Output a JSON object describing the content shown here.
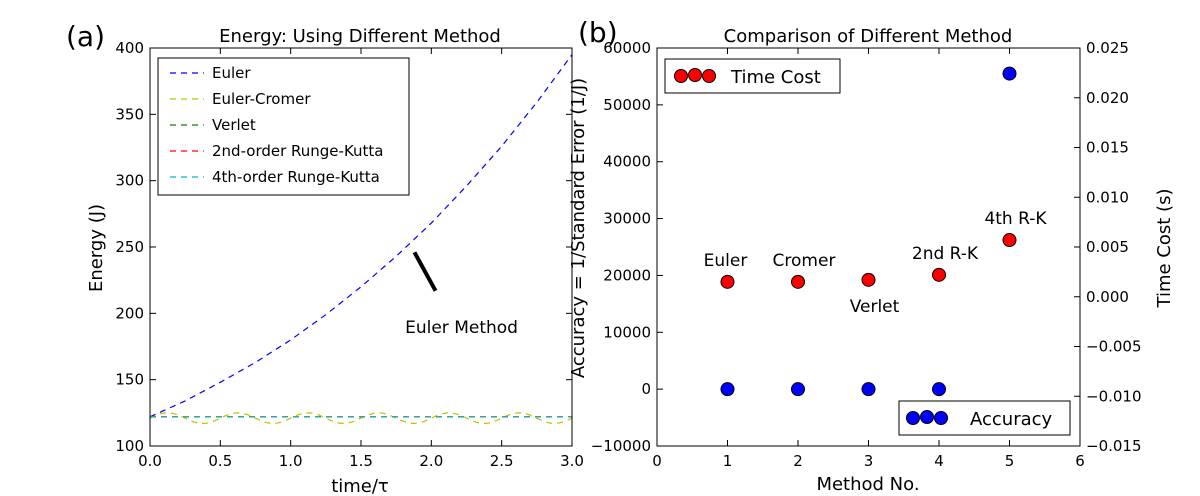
{
  "chart_data": [
    {
      "panel_label": "(a)",
      "type": "line",
      "title": "Energy: Using Different Method",
      "xlabel": "time/τ",
      "ylabel": "Energy (J)",
      "xlim": [
        0.0,
        3.0
      ],
      "ylim": [
        100,
        400
      ],
      "xticks": [
        "0.0",
        "0.5",
        "1.0",
        "1.5",
        "2.0",
        "2.5",
        "3.0"
      ],
      "yticks": [
        "100",
        "150",
        "200",
        "250",
        "300",
        "350",
        "400"
      ],
      "legend_position": "upper-left",
      "series": [
        {
          "name": "Euler",
          "color": "#0000ff",
          "style": "dashed",
          "x": [
            0.0,
            0.25,
            0.5,
            0.75,
            1.0,
            1.25,
            1.5,
            1.75,
            2.0,
            2.25,
            2.5,
            2.75,
            3.0
          ],
          "y": [
            122.0,
            134.0,
            148.0,
            163.0,
            180.0,
            199.0,
            220.0,
            243.0,
            268.0,
            296.0,
            326.0,
            359.0,
            395.0
          ]
        },
        {
          "name": "Euler-Cromer",
          "color": "#bfbf00",
          "style": "dashed",
          "amplitude": 4,
          "period": 0.5,
          "baseline": 121
        },
        {
          "name": "Verlet",
          "color": "#008000",
          "style": "dashed",
          "x": [
            0.0,
            3.0
          ],
          "y": [
            122.0,
            122.0
          ]
        },
        {
          "name": "2nd-order Runge-Kutta",
          "color": "#ff0000",
          "style": "dashed",
          "x": [
            0.0,
            3.0
          ],
          "y": [
            122.0,
            122.0
          ]
        },
        {
          "name": "4th-order Runge-Kutta",
          "color": "#00bfbf",
          "style": "dashed",
          "x": [
            0.0,
            3.0
          ],
          "y": [
            122.0,
            122.0
          ]
        }
      ],
      "annotation": {
        "text": "Euler Method",
        "arrow_from": [
          2.03,
          217
        ],
        "arrow_to": [
          1.88,
          246
        ]
      }
    },
    {
      "panel_label": "(b)",
      "type": "scatter",
      "title": "Comparison of Different Method",
      "xlabel": "Method No.",
      "ylabel": "Accuracy = 1/Standard Error (1/J)",
      "y2label": "Time Cost (s)",
      "xlim": [
        0,
        6
      ],
      "ylim": [
        -10000,
        60000
      ],
      "y2lim": [
        -0.015,
        0.025
      ],
      "xticks": [
        "0",
        "1",
        "2",
        "3",
        "4",
        "5",
        "6"
      ],
      "yticks": [
        "−10000",
        "0",
        "10000",
        "20000",
        "30000",
        "40000",
        "50000",
        "60000"
      ],
      "y2ticks": [
        "−0.015",
        "−0.010",
        "−0.005",
        "0.000",
        "0.005",
        "0.010",
        "0.015",
        "0.020",
        "0.025"
      ],
      "series": [
        {
          "name": "Accuracy",
          "color": "#0000ff",
          "axis": "left",
          "x": [
            1,
            2,
            3,
            4,
            5
          ],
          "y": [
            0,
            0,
            0,
            0,
            55500
          ]
        },
        {
          "name": "Time Cost",
          "color": "#ff0000",
          "axis": "right",
          "x": [
            1,
            2,
            3,
            4,
            5
          ],
          "y": [
            0.0015,
            0.0015,
            0.0017,
            0.0022,
            0.0057
          ]
        }
      ],
      "point_labels": [
        "Euler",
        "Cromer",
        "Verlet",
        "2nd R-K",
        "4th R-K"
      ],
      "legend": {
        "time_cost": "Time Cost",
        "accuracy": "Accuracy",
        "time_cost_position": "upper-left",
        "accuracy_position": "lower-right"
      }
    }
  ]
}
